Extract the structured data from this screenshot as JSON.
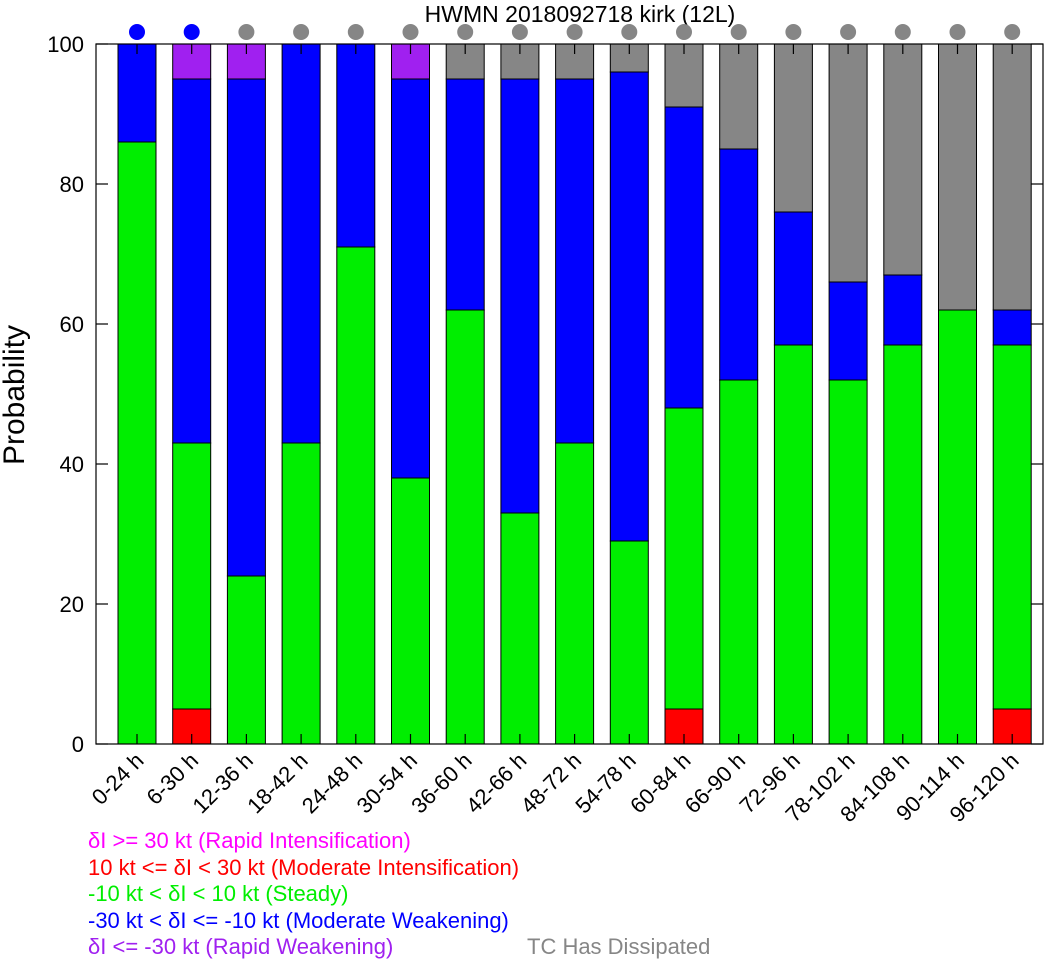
{
  "chart_data": {
    "type": "bar",
    "stacked": true,
    "title": "HWMN 2018092718 kirk (12L)",
    "xlabel": "",
    "ylabel": "Probability",
    "ylim": [
      0,
      100
    ],
    "yticks": [
      0,
      20,
      40,
      60,
      80,
      100
    ],
    "grid": false,
    "categories": [
      "0-24 h",
      "6-30 h",
      "12-36 h",
      "18-42 h",
      "24-48 h",
      "30-54 h",
      "36-60 h",
      "42-66 h",
      "48-72 h",
      "54-78 h",
      "60-84 h",
      "66-90 h",
      "72-96 h",
      "78-102 h",
      "84-108 h",
      "90-114 h",
      "96-120 h"
    ],
    "series": [
      {
        "key": "rapid_weakening",
        "name": "δI <= -30 kt (Rapid Weakening)",
        "color": "#a020f0",
        "values": [
          0,
          0,
          0,
          0,
          0,
          0,
          0,
          0,
          0,
          0,
          0,
          0,
          0,
          0,
          0,
          0,
          0
        ]
      },
      {
        "key": "moderate_intensification",
        "name": "10 kt <= δI < 30 kt (Moderate Intensification)",
        "color": "#ff0000",
        "values": [
          0,
          5,
          0,
          0,
          0,
          0,
          0,
          0,
          0,
          0,
          5,
          0,
          0,
          0,
          0,
          0,
          5
        ]
      },
      {
        "key": "steady",
        "name": "-10 kt < δI < 10 kt (Steady)",
        "color": "#00ee00",
        "values": [
          86,
          38,
          24,
          43,
          71,
          38,
          62,
          33,
          43,
          29,
          43,
          52,
          57,
          52,
          57,
          62,
          52
        ]
      },
      {
        "key": "moderate_weakening",
        "name": "-30 kt < δI <= -10 kt (Moderate Weakening)",
        "color": "#0000ff",
        "values": [
          14,
          52,
          71,
          57,
          29,
          57,
          33,
          62,
          52,
          67,
          43,
          33,
          19,
          14,
          10,
          0,
          5
        ]
      },
      {
        "key": "rapid_intensification_bar",
        "name": "",
        "color": "#a020f0",
        "values": [
          0,
          5,
          5,
          0,
          0,
          5,
          0,
          0,
          0,
          0,
          0,
          0,
          0,
          0,
          0,
          0,
          0
        ]
      },
      {
        "key": "dissipated",
        "name": "TC Has Dissipated",
        "color": "#868686",
        "values": [
          0,
          0,
          0,
          0,
          0,
          0,
          5,
          5,
          5,
          4,
          9,
          15,
          24,
          34,
          33,
          38,
          38
        ]
      }
    ],
    "top_markers": [
      "blue",
      "blue",
      "gray",
      "gray",
      "gray",
      "gray",
      "gray",
      "gray",
      "gray",
      "gray",
      "gray",
      "gray",
      "gray",
      "gray",
      "gray",
      "gray",
      "gray"
    ],
    "marker_colors": {
      "blue": "#0000ff",
      "gray": "#868686"
    }
  },
  "legend": {
    "rapid_intensification": {
      "text": "δI >= 30 kt (Rapid Intensification)",
      "color": "#ff00ff"
    },
    "moderate_intensification": {
      "text": "10 kt <= δI < 30 kt (Moderate Intensification)",
      "color": "#ff0000"
    },
    "steady": {
      "text": "-10 kt < δI < 10 kt (Steady)",
      "color": "#00ee00"
    },
    "moderate_weakening": {
      "text": "-30 kt < δI <= -10 kt (Moderate Weakening)",
      "color": "#0000ff"
    },
    "rapid_weakening": {
      "text": "δI <= -30 kt (Rapid Weakening)",
      "color": "#a020f0"
    },
    "dissipated": {
      "text": "TC Has Dissipated",
      "color": "#868686"
    }
  }
}
